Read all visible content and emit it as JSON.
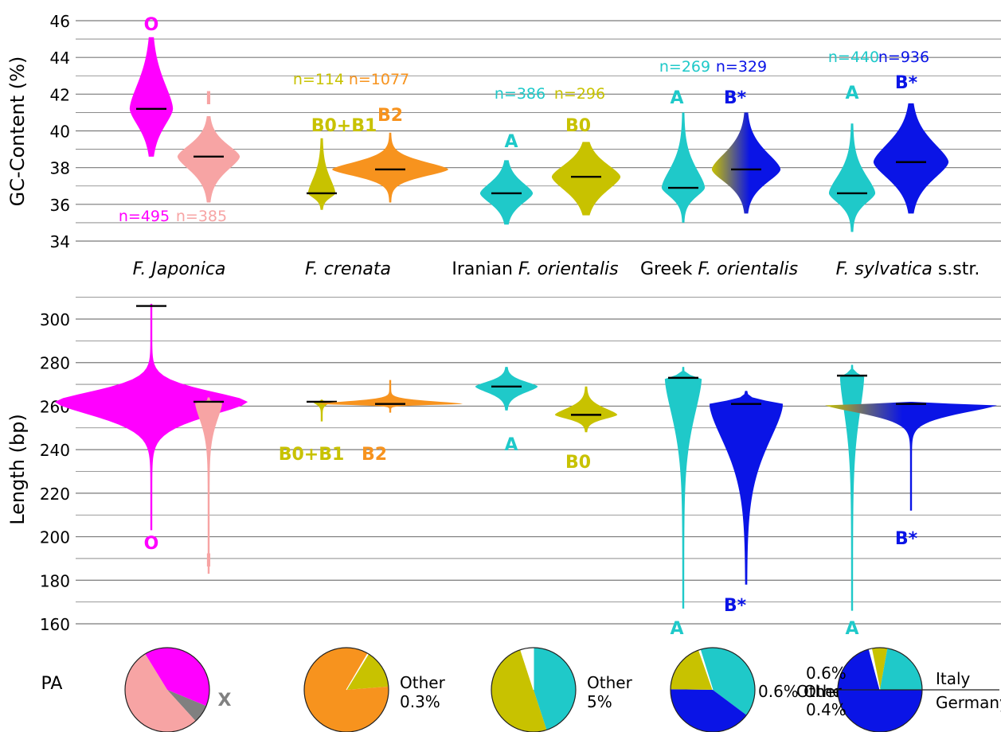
{
  "colors": {
    "magenta": "#ff00ff",
    "pink": "#f7a4a4",
    "olive": "#c8c200",
    "orange": "#f7931e",
    "cyan": "#1fc9c9",
    "blue": "#0a14e6",
    "gray": "#808080",
    "grid": "#7a7a7a",
    "median": "#000000"
  },
  "groups": [
    {
      "label": "F. Japonica",
      "italic_all": true
    },
    {
      "label_pre": "",
      "label_italic": "F. crenata",
      "label_post": ""
    },
    {
      "label_pre": "Iranian ",
      "label_italic": "F. orientalis",
      "label_post": ""
    },
    {
      "label_pre": "Greek ",
      "label_italic": "F. orientalis",
      "label_post": ""
    },
    {
      "label_pre": "",
      "label_italic": "F. sylvatica",
      "label_post": " s.str."
    }
  ],
  "chart_data": [
    {
      "type": "violin",
      "ylabel": "GC-Content (%)",
      "ylim": [
        34,
        46
      ],
      "yticks": [
        "34",
        "36",
        "38",
        "40",
        "42",
        "44",
        "46"
      ],
      "grid": "horizontal",
      "violins": [
        {
          "group": 0,
          "color": "magenta",
          "median": 41.2,
          "min": 38.6,
          "max": 45.1,
          "n": "n=495",
          "tag": "O"
        },
        {
          "group": 0,
          "color": "pink",
          "median": 38.6,
          "min": 36.1,
          "max": 40.8,
          "n": "n=385",
          "tag": "I"
        },
        {
          "group": 1,
          "color": "olive",
          "median": 36.6,
          "min": 35.7,
          "max": 39.6,
          "n": "n=114",
          "tag": "B0+B1"
        },
        {
          "group": 1,
          "color": "orange",
          "median": 37.9,
          "min": 36.1,
          "max": 39.9,
          "n": "n=1077",
          "tag": "B2"
        },
        {
          "group": 2,
          "color": "cyan",
          "median": 36.6,
          "min": 34.9,
          "max": 38.4,
          "n": "n=386",
          "tag": "A"
        },
        {
          "group": 2,
          "color": "olive",
          "median": 37.5,
          "min": 35.4,
          "max": 39.4,
          "n": "n=296",
          "tag": "B0"
        },
        {
          "group": 3,
          "color": "cyan",
          "median": 36.9,
          "min": 35.0,
          "max": 41.0,
          "n": "n=269",
          "tag": "A"
        },
        {
          "group": 3,
          "color": "blue",
          "median": 37.9,
          "min": 35.5,
          "max": 41.0,
          "n": "n=329",
          "tag": "B*"
        },
        {
          "group": 4,
          "color": "cyan",
          "median": 36.6,
          "min": 34.5,
          "max": 40.4,
          "n": "n=440",
          "tag": "A"
        },
        {
          "group": 4,
          "color": "blue",
          "median": 38.3,
          "min": 35.5,
          "max": 41.5,
          "n": "n=936",
          "tag": "B*"
        }
      ]
    },
    {
      "type": "violin",
      "ylabel": "Length (bp)",
      "ylim": [
        160,
        300
      ],
      "yticks": [
        "160",
        "180",
        "200",
        "220",
        "240",
        "260",
        "280",
        "300"
      ],
      "grid": "horizontal",
      "violins": [
        {
          "group": 0,
          "color": "magenta",
          "median": 306,
          "min": 203,
          "max": 307,
          "tag": "O"
        },
        {
          "group": 0,
          "color": "pink",
          "median": 262,
          "min": 183,
          "max": 264,
          "tag": "I"
        },
        {
          "group": 1,
          "color": "olive",
          "median": 262,
          "min": 253,
          "max": 263,
          "tag": "B0+B1"
        },
        {
          "group": 1,
          "color": "orange",
          "median": 261,
          "min": 257,
          "max": 272,
          "tag": "B2"
        },
        {
          "group": 2,
          "color": "cyan",
          "median": 269,
          "min": 258,
          "max": 278,
          "tag": "A"
        },
        {
          "group": 2,
          "color": "olive",
          "median": 256,
          "min": 248,
          "max": 269,
          "tag": "B0"
        },
        {
          "group": 3,
          "color": "cyan",
          "median": 273,
          "min": 167,
          "max": 278,
          "tag": "A"
        },
        {
          "group": 3,
          "color": "blue",
          "median": 261,
          "min": 178,
          "max": 267,
          "tag": "B*"
        },
        {
          "group": 4,
          "color": "cyan",
          "median": 274,
          "min": 166,
          "max": 279,
          "tag": "A"
        },
        {
          "group": 4,
          "color": "blue",
          "median": 261,
          "min": 212,
          "max": 262,
          "tag": "B*"
        }
      ]
    },
    {
      "type": "pie",
      "label": "PA",
      "pies": [
        {
          "group": 0,
          "slices": [
            {
              "color": "magenta",
              "value": 40
            },
            {
              "color": "gray",
              "value": 7
            },
            {
              "color": "pink",
              "value": 53
            }
          ],
          "annotations": [
            "X"
          ]
        },
        {
          "group": 1,
          "slices": [
            {
              "color": "olive",
              "value": 15
            },
            {
              "color": "orange",
              "value": 84.7
            },
            {
              "color": "white",
              "value": 0.3
            }
          ],
          "annotations": [
            "Other",
            "0.3%"
          ]
        },
        {
          "group": 2,
          "slices": [
            {
              "color": "cyan",
              "value": 45
            },
            {
              "color": "olive",
              "value": 50
            },
            {
              "color": "white",
              "value": 5
            }
          ],
          "annotations": [
            "Other",
            "5%"
          ]
        },
        {
          "group": 3,
          "slices": [
            {
              "color": "cyan",
              "value": 40
            },
            {
              "color": "blue",
              "value": 40
            },
            {
              "color": "olive",
              "value": 19.4
            },
            {
              "color": "white",
              "value": 0.6
            }
          ],
          "annotations": [
            "0.6% Other"
          ]
        },
        {
          "group": 4,
          "slices": [
            {
              "color": "olive",
              "value": 6
            },
            {
              "color": "cyan",
              "value": 22
            },
            {
              "color": "blue",
              "value": 71
            },
            {
              "color": "white",
              "value": 1
            }
          ],
          "annotations": [
            "0.6%",
            "Other",
            "0.4%",
            "Italy",
            "Germany"
          ]
        }
      ]
    }
  ]
}
